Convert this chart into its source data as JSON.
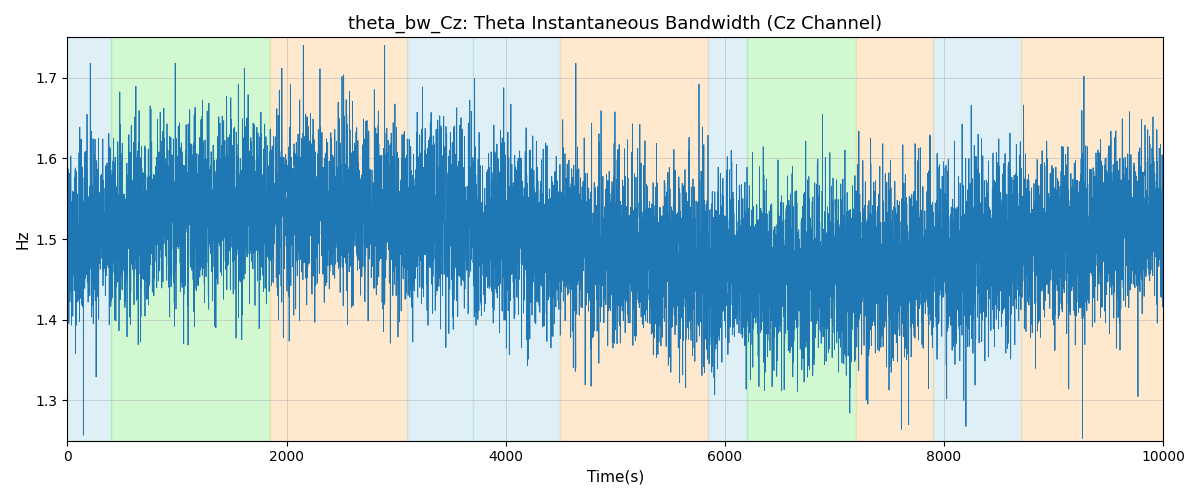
{
  "title": "theta_bw_Cz: Theta Instantaneous Bandwidth (Cz Channel)",
  "xlabel": "Time(s)",
  "ylabel": "Hz",
  "xlim": [
    0,
    10000
  ],
  "ylim": [
    1.25,
    1.75
  ],
  "line_color": "#1f77b4",
  "line_width": 0.6,
  "seed": 42,
  "n_points": 10000,
  "background_bands": [
    {
      "start": 0,
      "end": 400,
      "color": "#add8e6",
      "alpha": 0.4
    },
    {
      "start": 400,
      "end": 1850,
      "color": "#90ee90",
      "alpha": 0.4
    },
    {
      "start": 1850,
      "end": 3100,
      "color": "#ffd59e",
      "alpha": 0.5
    },
    {
      "start": 3100,
      "end": 3700,
      "color": "#add8e6",
      "alpha": 0.4
    },
    {
      "start": 3700,
      "end": 4500,
      "color": "#add8e6",
      "alpha": 0.4
    },
    {
      "start": 4500,
      "end": 5850,
      "color": "#ffd59e",
      "alpha": 0.5
    },
    {
      "start": 5850,
      "end": 6200,
      "color": "#add8e6",
      "alpha": 0.4
    },
    {
      "start": 6200,
      "end": 7200,
      "color": "#90ee90",
      "alpha": 0.4
    },
    {
      "start": 7200,
      "end": 7900,
      "color": "#ffd59e",
      "alpha": 0.5
    },
    {
      "start": 7900,
      "end": 8700,
      "color": "#add8e6",
      "alpha": 0.4
    },
    {
      "start": 8700,
      "end": 10000,
      "color": "#ffd59e",
      "alpha": 0.5
    }
  ],
  "grid_color": "#b0b0b0",
  "grid_alpha": 0.7,
  "grid_linestyle": "-",
  "grid_linewidth": 0.5,
  "title_fontsize": 13,
  "label_fontsize": 11,
  "tick_fontsize": 10,
  "figsize": [
    12,
    5
  ],
  "dpi": 100,
  "slow_amp": 0.04,
  "slow_period": 9000,
  "noise_std": 0.055,
  "base_value": 1.5
}
